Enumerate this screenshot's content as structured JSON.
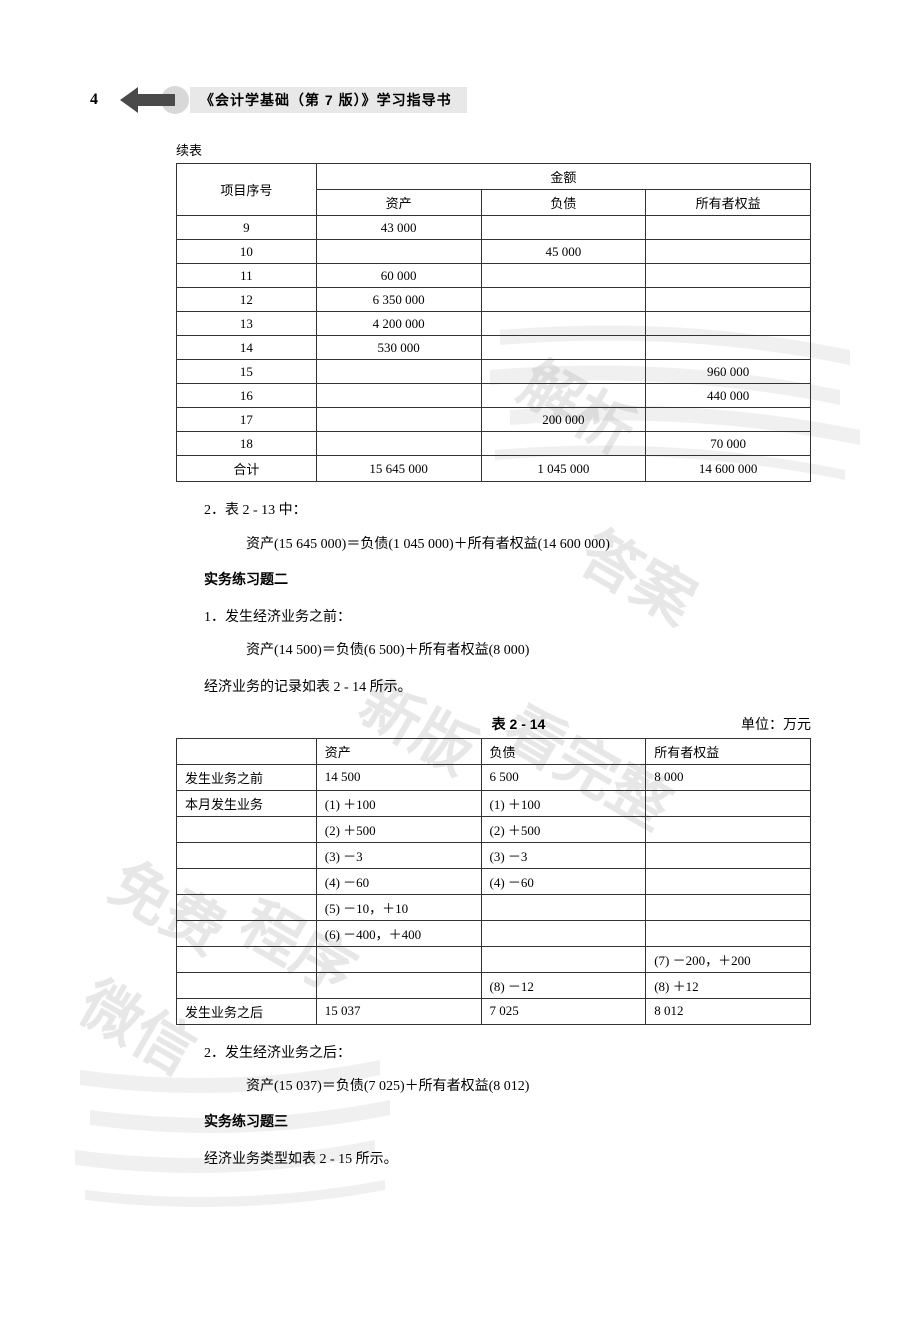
{
  "header": {
    "page_num": "4",
    "title": "《会计学基础（第 7 版）》学习指导书"
  },
  "continued_label": "续表",
  "table1": {
    "header_rowspan_col": "项目序号",
    "header_group": "金额",
    "sub_headers": [
      "资产",
      "负债",
      "所有者权益"
    ],
    "rows": [
      {
        "no": "9",
        "asset": "43 000",
        "liab": "",
        "equity": ""
      },
      {
        "no": "10",
        "asset": "",
        "liab": "45 000",
        "equity": ""
      },
      {
        "no": "11",
        "asset": "60 000",
        "liab": "",
        "equity": ""
      },
      {
        "no": "12",
        "asset": "6 350 000",
        "liab": "",
        "equity": ""
      },
      {
        "no": "13",
        "asset": "4 200 000",
        "liab": "",
        "equity": ""
      },
      {
        "no": "14",
        "asset": "530 000",
        "liab": "",
        "equity": ""
      },
      {
        "no": "15",
        "asset": "",
        "liab": "",
        "equity": "960 000"
      },
      {
        "no": "16",
        "asset": "",
        "liab": "",
        "equity": "440 000"
      },
      {
        "no": "17",
        "asset": "",
        "liab": "200 000",
        "equity": ""
      },
      {
        "no": "18",
        "asset": "",
        "liab": "",
        "equity": "70 000"
      },
      {
        "no": "合计",
        "asset": "15 645 000",
        "liab": "1 045 000",
        "equity": "14 600 000"
      }
    ]
  },
  "para1": {
    "line1": "2．表 2 - 13 中：",
    "formula1": "资产(15 645 000)＝负债(1 045 000)＋所有者权益(14 600 000)"
  },
  "section2": {
    "title": "实务练习题二",
    "line1": "1．发生经济业务之前：",
    "formula1": "资产(14 500)＝负债(6 500)＋所有者权益(8 000)",
    "line2": "经济业务的记录如表 2 - 14 所示。"
  },
  "table2": {
    "caption": "表 2 - 14",
    "unit": "单位：万元",
    "headers": [
      "",
      "资产",
      "负债",
      "所有者权益"
    ],
    "rows": [
      {
        "c1": "发生业务之前",
        "c2": "14 500",
        "c3": "6 500",
        "c4": "8 000"
      },
      {
        "c1": "本月发生业务",
        "c2": "(1) ＋100",
        "c3": "(1) ＋100",
        "c4": ""
      },
      {
        "c1": "",
        "c2": "(2) ＋500",
        "c3": "(2) ＋500",
        "c4": ""
      },
      {
        "c1": "",
        "c2": "(3) －3",
        "c3": "(3) －3",
        "c4": ""
      },
      {
        "c1": "",
        "c2": "(4) －60",
        "c3": "(4) －60",
        "c4": ""
      },
      {
        "c1": "",
        "c2": "(5) －10，＋10",
        "c3": "",
        "c4": ""
      },
      {
        "c1": "",
        "c2": "(6) －400，＋400",
        "c3": "",
        "c4": ""
      },
      {
        "c1": "",
        "c2": "",
        "c3": "",
        "c4": "(7) －200，＋200"
      },
      {
        "c1": "",
        "c2": "",
        "c3": "(8) －12",
        "c4": "(8) ＋12"
      },
      {
        "c1": "发生业务之后",
        "c2": "15 037",
        "c3": "7 025",
        "c4": "8 012"
      }
    ]
  },
  "para3": {
    "line1": "2．发生经济业务之后：",
    "formula1": "资产(15 037)＝负债(7 025)＋所有者权益(8 012)"
  },
  "section3": {
    "title": "实务练习题三",
    "line1": "经济业务类型如表 2 - 15 所示。"
  },
  "watermarks": {
    "w1": "解析",
    "w2": "答案",
    "w3": "新版",
    "w4": "看完整",
    "w5": "免费",
    "w6": "程序",
    "w7": "微信"
  },
  "colors": {
    "arrow_fill": "#4a4a4a",
    "arrow_circle": "#d0d0d0",
    "title_bg": "#e8e8e8",
    "border": "#333333",
    "watermark": "rgba(160,160,160,0.25)"
  }
}
